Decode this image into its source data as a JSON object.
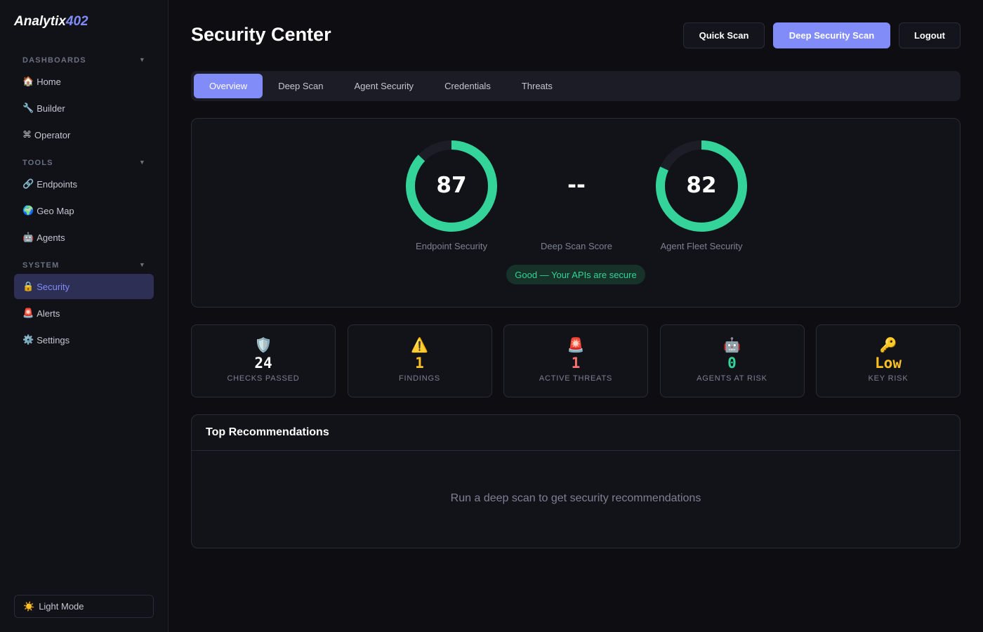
{
  "app": {
    "logo_main": "Analytix",
    "logo_accent": "402"
  },
  "sidebar": {
    "sections": [
      {
        "label": "DASHBOARDS",
        "items": [
          {
            "icon": "🏠",
            "label": "Home"
          },
          {
            "icon": "🔧",
            "label": "Builder"
          },
          {
            "icon": "⌘",
            "label": "Operator"
          }
        ]
      },
      {
        "label": "TOOLS",
        "items": [
          {
            "icon": "🔗",
            "label": "Endpoints"
          },
          {
            "icon": "🌍",
            "label": "Geo Map"
          },
          {
            "icon": "🤖",
            "label": "Agents"
          }
        ]
      },
      {
        "label": "SYSTEM",
        "items": [
          {
            "icon": "🔒",
            "label": "Security",
            "active": true
          },
          {
            "icon": "🚨",
            "label": "Alerts"
          },
          {
            "icon": "⚙️",
            "label": "Settings"
          }
        ]
      }
    ],
    "collapse_glyph": "▼",
    "light_mode": {
      "icon": "☀️",
      "label": "Light Mode"
    }
  },
  "header": {
    "title": "Security Center",
    "buttons": {
      "quick": "Quick Scan",
      "deep": "Deep Security Scan",
      "logout": "Logout"
    }
  },
  "tabs": [
    "Overview",
    "Deep Scan",
    "Agent Security",
    "Credentials",
    "Threats"
  ],
  "active_tab": "Overview",
  "scores": [
    {
      "value": "87",
      "percent": 87,
      "label": "Endpoint Security"
    },
    {
      "value": "--",
      "percent": 0,
      "label": "Deep Scan Score"
    },
    {
      "value": "82",
      "percent": 82,
      "label": "Agent Fleet Security"
    }
  ],
  "status_badge": "Good — Your APIs are secure",
  "stats": [
    {
      "icon": "🛡️",
      "value": "24",
      "label": "CHECKS PASSED",
      "color": "#ffffff"
    },
    {
      "icon": "⚠️",
      "value": "1",
      "label": "FINDINGS",
      "color": "#fbbf24"
    },
    {
      "icon": "🚨",
      "value": "1",
      "label": "ACTIVE THREATS",
      "color": "#f87171"
    },
    {
      "icon": "🤖",
      "value": "0",
      "label": "AGENTS AT RISK",
      "color": "#34d399"
    },
    {
      "icon": "🔑",
      "value": "Low",
      "label": "KEY RISK",
      "color": "#fbbf24"
    }
  ],
  "recommendations": {
    "title": "Top Recommendations",
    "empty": "Run a deep scan to get security recommendations"
  },
  "colors": {
    "accent": "#818cf8",
    "good": "#34d399"
  }
}
